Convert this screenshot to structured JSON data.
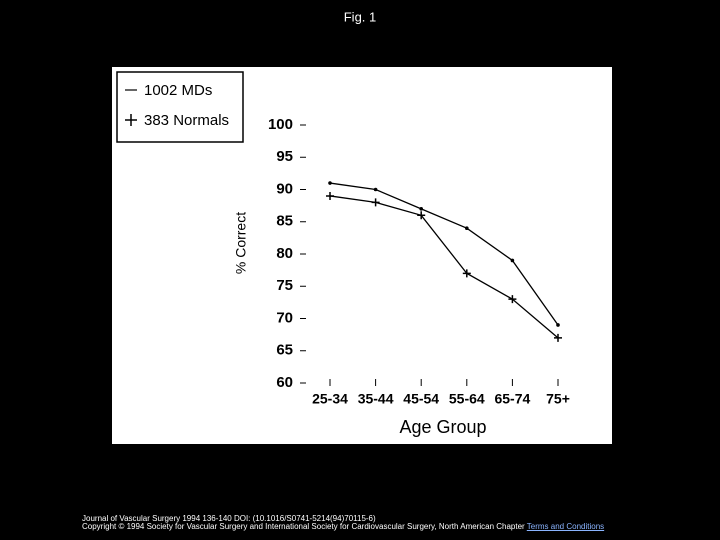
{
  "header": {
    "title": "Fig. 1"
  },
  "chart_data": {
    "type": "line",
    "xlabel": "Age Group",
    "ylabel": "% Correct",
    "categories": [
      "25-34",
      "35-44",
      "45-54",
      "55-64",
      "65-74",
      "75+"
    ],
    "series": [
      {
        "name": "1002 MDs",
        "color": "#000000",
        "marker": "dot",
        "values": [
          91,
          90,
          87,
          84,
          79,
          69
        ]
      },
      {
        "name": "383 Normals",
        "color": "#000000",
        "marker": "plus",
        "values": [
          89,
          88,
          86,
          77,
          73,
          67
        ]
      }
    ],
    "ylim": [
      60,
      100
    ],
    "yticks": [
      60,
      65,
      70,
      75,
      80,
      85,
      90,
      95,
      100
    ],
    "legend": "top-left"
  },
  "footer": {
    "citation": "Journal of Vascular Surgery 1994 136-140 DOI: (10.1016/S0741-5214(94)70115-6)",
    "copyright": "Copyright © 1994 Society for Vascular Surgery and International Society for Cardiovascular Surgery, North American Chapter",
    "link": "Terms and Conditions"
  }
}
